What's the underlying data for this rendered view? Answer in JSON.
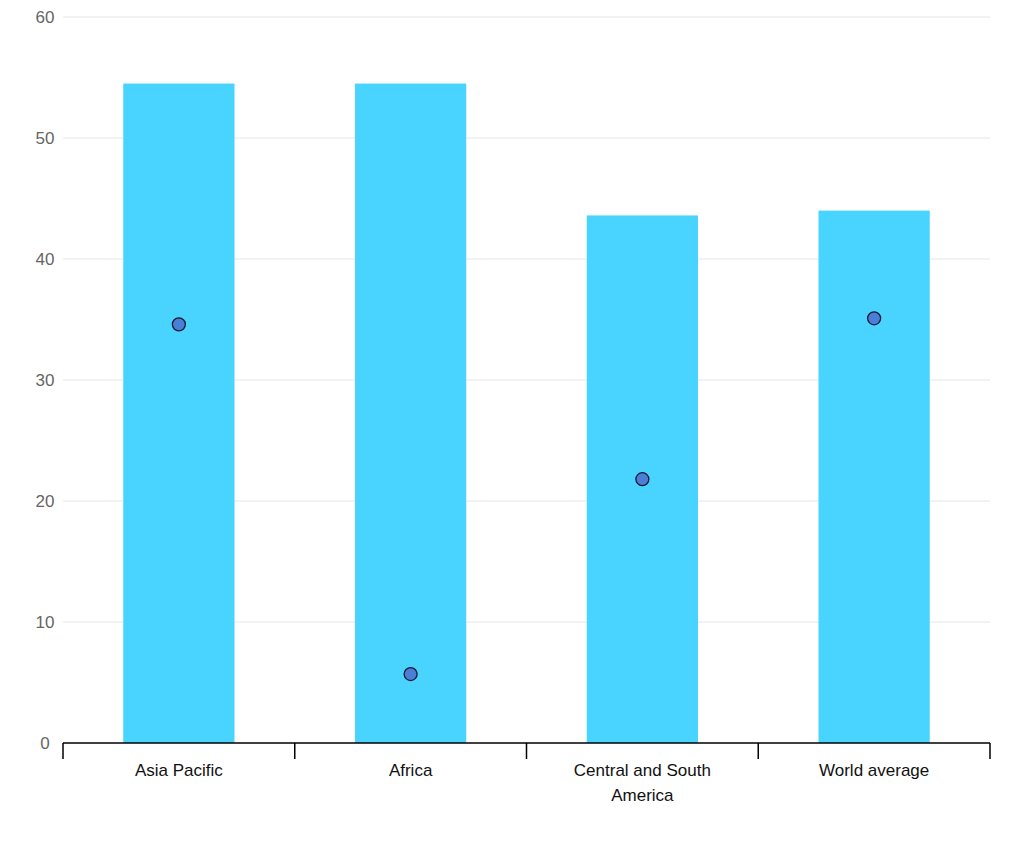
{
  "chart_data": {
    "type": "bar",
    "categories": [
      "Asia Pacific",
      "Africa",
      "Central and South America",
      "World average"
    ],
    "series": [
      {
        "type": "bar",
        "color": "#48d4ff",
        "values": [
          54.5,
          54.5,
          43.6,
          44.0
        ]
      },
      {
        "type": "scatter",
        "marker": "circle",
        "color": "#4a7fd8",
        "values": [
          34.6,
          5.7,
          21.8,
          35.1
        ]
      }
    ],
    "ylim": [
      0,
      60
    ],
    "yticks": [
      0,
      10,
      20,
      30,
      40,
      50,
      60
    ],
    "grid": true
  }
}
